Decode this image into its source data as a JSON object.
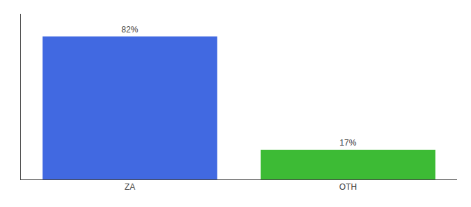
{
  "chart_data": {
    "type": "bar",
    "categories": [
      "ZA",
      "OTH"
    ],
    "values": [
      82,
      17
    ],
    "value_labels": [
      "82%",
      "17%"
    ],
    "data_labels": true,
    "colors": [
      "#4169e1",
      "#3dbb35"
    ],
    "ylim": [
      0,
      95
    ],
    "grid": false,
    "tick_labels": "x"
  }
}
